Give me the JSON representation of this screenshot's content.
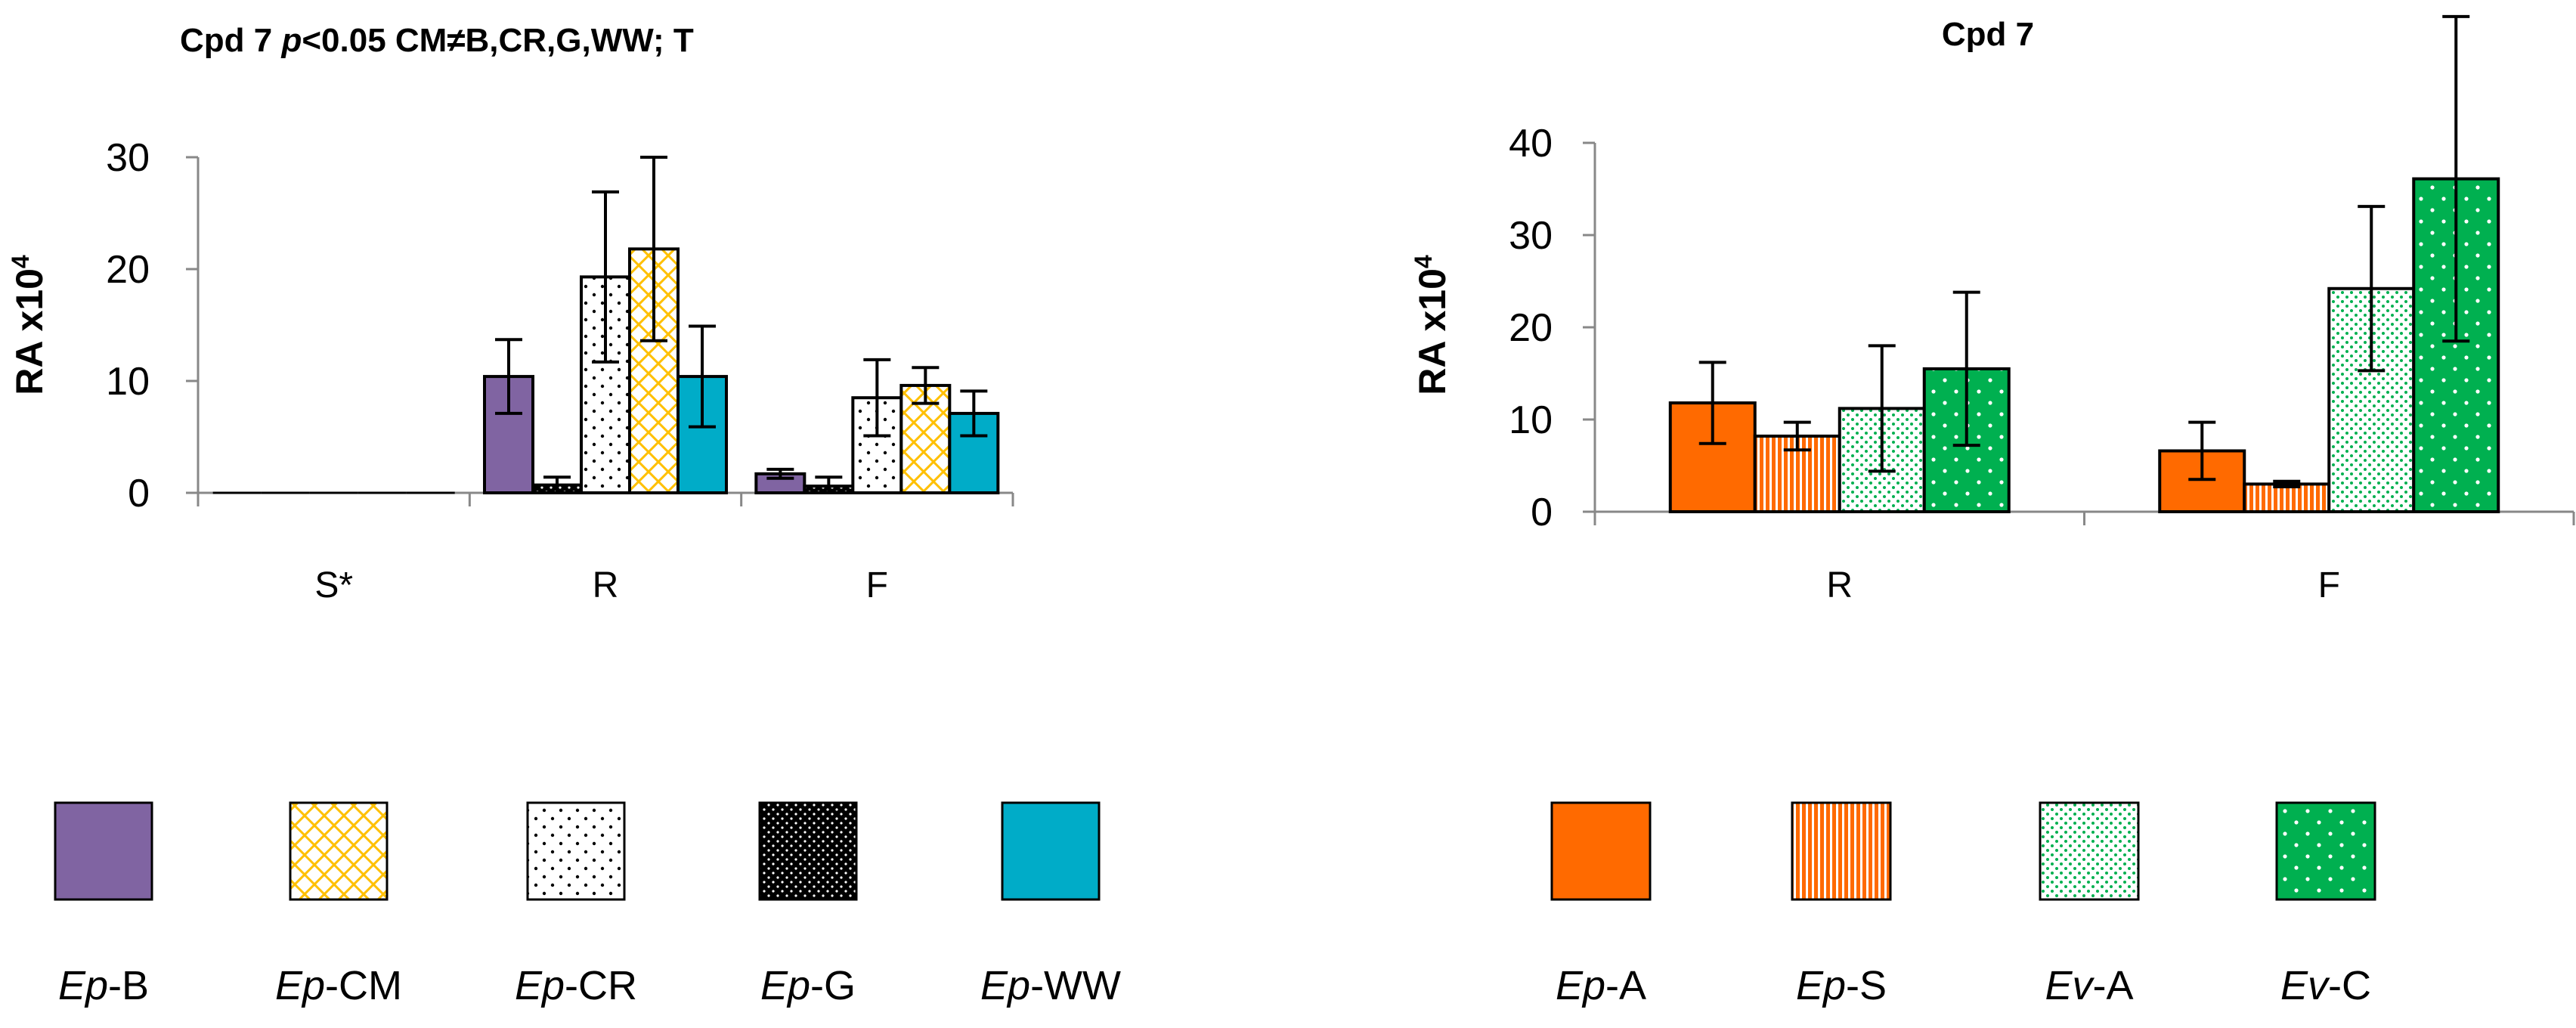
{
  "chart_data": [
    {
      "type": "bar",
      "title": {
        "prefix": "Cpd  7 ",
        "italic": "p",
        "rest": "<0.05 CM≠B,CR,G,WW; T"
      },
      "ylabel": {
        "base": "RA x10",
        "sup": "4"
      },
      "ylim": [
        0,
        30
      ],
      "yticks": [
        0,
        10,
        20,
        30
      ],
      "categories": [
        "S*",
        "R",
        "F"
      ],
      "series": [
        {
          "name": "B",
          "prefix": "Ep",
          "color": "#8064a2",
          "pattern": "solid",
          "values": [
            0,
            10.4,
            1.7
          ],
          "errors": [
            0,
            3.3,
            0.4
          ]
        },
        {
          "name": "G",
          "prefix": "Ep",
          "color": "#000000",
          "pattern": "dots-black",
          "values": [
            0,
            0.7,
            0.6
          ],
          "errors": [
            0,
            0.7,
            0.8
          ]
        },
        {
          "name": "CR",
          "prefix": "Ep",
          "color": "#ffffff",
          "pattern": "dots-white",
          "values": [
            0,
            19.3,
            8.5
          ],
          "errors": [
            0,
            7.6,
            3.4
          ]
        },
        {
          "name": "CM",
          "prefix": "Ep",
          "color": "#ffc000",
          "pattern": "cross",
          "values": [
            0,
            21.8,
            9.6
          ],
          "errors": [
            0,
            8.2,
            1.6
          ]
        },
        {
          "name": "WW",
          "prefix": "Ep",
          "color": "#00acc8",
          "pattern": "solid",
          "values": [
            0,
            10.4,
            7.1
          ],
          "errors": [
            0,
            4.5,
            2.0
          ]
        }
      ],
      "legend_order": [
        "B",
        "CM",
        "CR",
        "G",
        "WW"
      ]
    },
    {
      "type": "bar",
      "title": {
        "prefix": "Cpd 7",
        "italic": "",
        "rest": ""
      },
      "ylabel": {
        "base": "RA x10",
        "sup": "4"
      },
      "ylim": [
        0,
        40
      ],
      "yticks": [
        0,
        10,
        20,
        30,
        40
      ],
      "categories": [
        "R",
        "F"
      ],
      "series": [
        {
          "name": "A",
          "prefix": "Ep",
          "color": "#ff6a00",
          "pattern": "solid",
          "values": [
            11.8,
            6.6
          ],
          "errors": [
            4.4,
            3.1
          ]
        },
        {
          "name": "S",
          "prefix": "Ep",
          "color": "#ff6a00",
          "pattern": "hstripes",
          "values": [
            8.2,
            3.0
          ],
          "errors": [
            1.5,
            0.3
          ]
        },
        {
          "name": "A",
          "prefix": "Ev",
          "color": "#00b050",
          "pattern": "sparse-dots",
          "values": [
            11.2,
            24.2
          ],
          "errors": [
            6.8,
            8.9
          ]
        },
        {
          "name": "C",
          "prefix": "Ev",
          "color": "#00b050",
          "pattern": "white-dots-on-color",
          "values": [
            15.5,
            36.1
          ],
          "errors": [
            8.3,
            17.6
          ]
        }
      ],
      "legend_order": [
        0,
        1,
        2,
        3
      ]
    }
  ]
}
